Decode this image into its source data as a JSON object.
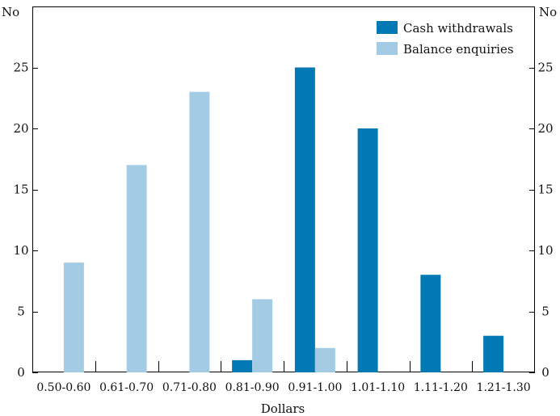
{
  "chart_data": {
    "type": "bar",
    "categories": [
      "0.50-0.60",
      "0.61-0.70",
      "0.71-0.80",
      "0.81-0.90",
      "0.91-1.00",
      "1.01-1.10",
      "1.11-1.20",
      "1.21-1.30"
    ],
    "series": [
      {
        "name": "Cash withdrawals",
        "color": "#0079b4",
        "values": [
          0,
          0,
          0,
          1,
          25,
          20,
          8,
          3
        ]
      },
      {
        "name": "Balance enquiries",
        "color": "#a3cbe3",
        "values": [
          9,
          17,
          23,
          6,
          2,
          0,
          0,
          0
        ]
      }
    ],
    "xlabel": "Dollars",
    "ylabel_left": "No",
    "ylabel_right": "No",
    "ylim": [
      0,
      30
    ],
    "yticks": [
      0,
      5,
      10,
      15,
      20,
      25
    ],
    "legend_position": "top-right",
    "grid": false
  }
}
